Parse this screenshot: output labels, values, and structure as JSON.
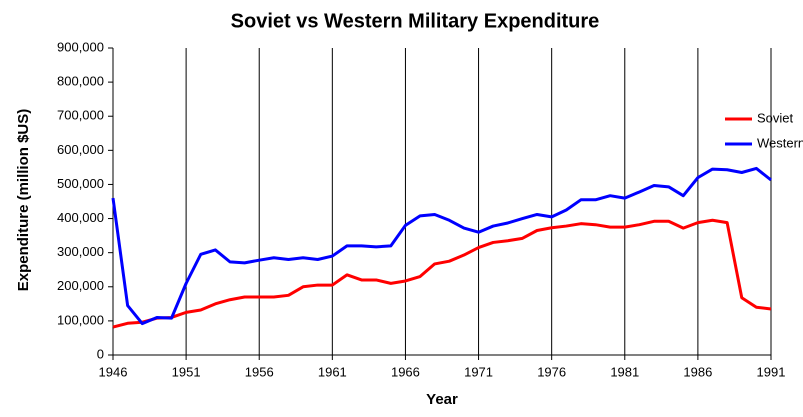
{
  "chart_data": {
    "type": "line",
    "title": "Soviet vs Western Military Expenditure",
    "x_label": "Year",
    "y_label": "Expenditure (million $US)",
    "x": [
      1946,
      1947,
      1948,
      1949,
      1950,
      1951,
      1952,
      1953,
      1954,
      1955,
      1956,
      1957,
      1958,
      1959,
      1960,
      1961,
      1962,
      1963,
      1964,
      1965,
      1966,
      1967,
      1968,
      1969,
      1970,
      1971,
      1972,
      1973,
      1974,
      1975,
      1976,
      1977,
      1978,
      1979,
      1980,
      1981,
      1982,
      1983,
      1984,
      1985,
      1986,
      1987,
      1988,
      1989,
      1990,
      1991
    ],
    "series": [
      {
        "name": "Soviet",
        "color": "#ff0000",
        "values": [
          82000,
          93000,
          96000,
          108000,
          110000,
          125000,
          132000,
          150000,
          162000,
          170000,
          170000,
          170000,
          175000,
          200000,
          205000,
          205000,
          235000,
          220000,
          220000,
          210000,
          217000,
          230000,
          267000,
          275000,
          293000,
          315000,
          330000,
          335000,
          342000,
          365000,
          373000,
          378000,
          385000,
          382000,
          375000,
          375000,
          382000,
          392000,
          392000,
          372000,
          388000,
          395000,
          388000,
          168000,
          140000,
          135000
        ]
      },
      {
        "name": "Western",
        "color": "#0000ff",
        "values": [
          460000,
          145000,
          92000,
          110000,
          108000,
          210000,
          295000,
          308000,
          273000,
          270000,
          278000,
          285000,
          280000,
          285000,
          280000,
          290000,
          320000,
          320000,
          317000,
          320000,
          380000,
          408000,
          412000,
          395000,
          372000,
          360000,
          378000,
          387000,
          400000,
          412000,
          405000,
          425000,
          455000,
          455000,
          467000,
          460000,
          478000,
          497000,
          493000,
          467000,
          520000,
          545000,
          543000,
          535000,
          547000,
          513000
        ]
      }
    ],
    "xlim": [
      1946,
      1991
    ],
    "xticks": [
      1946,
      1951,
      1956,
      1961,
      1966,
      1971,
      1976,
      1981,
      1986,
      1991
    ],
    "ylim": [
      0,
      900000
    ],
    "yticks": [
      0,
      {
        "value": 100000,
        "label": "100,000"
      },
      {
        "value": 200000,
        "label": "200,000"
      },
      {
        "value": 300000,
        "label": "300,000"
      },
      {
        "value": 400000,
        "label": "400,000"
      },
      {
        "value": 500000,
        "label": "500,000"
      },
      {
        "value": 600000,
        "label": "600,000"
      },
      {
        "value": 700000,
        "label": "700,000"
      },
      {
        "value": 800000,
        "label": "800,000"
      },
      {
        "value": 900000,
        "label": "900,000"
      }
    ],
    "grid": true,
    "legend": "right"
  }
}
